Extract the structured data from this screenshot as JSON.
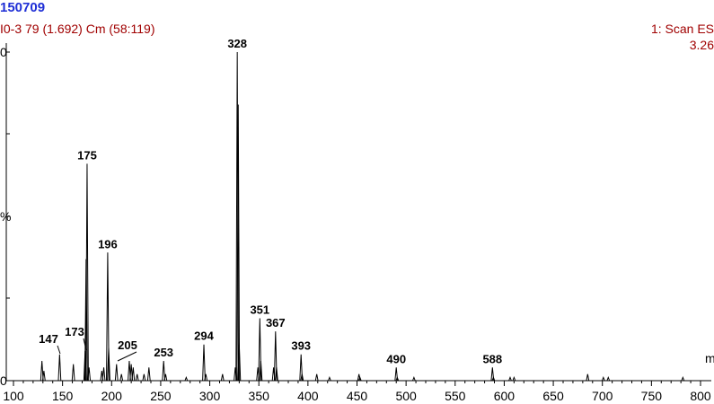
{
  "header": {
    "sample_id": "150709",
    "sample_info": "I0-3 79 (1.692) Cm (58:119)",
    "scan_info": "1: Scan ES",
    "intensity": "3.26"
  },
  "chart_data": {
    "type": "bar",
    "title": "",
    "xlabel": "m",
    "ylabel": "%",
    "y_tick_labels": [
      "0",
      "%"
    ],
    "xlim": [
      100,
      800
    ],
    "ylim": [
      0,
      100
    ],
    "x_ticks": [
      100,
      150,
      200,
      250,
      300,
      350,
      400,
      450,
      500,
      550,
      600,
      650,
      700,
      750,
      800
    ],
    "labeled_peaks": [
      {
        "mz": 147,
        "intensity": 8,
        "label": "147"
      },
      {
        "mz": 173,
        "intensity": 9,
        "label": "173"
      },
      {
        "mz": 175,
        "intensity": 66,
        "label": "175"
      },
      {
        "mz": 196,
        "intensity": 39,
        "label": "196"
      },
      {
        "mz": 205,
        "intensity": 5,
        "label": "205"
      },
      {
        "mz": 253,
        "intensity": 6,
        "label": "253"
      },
      {
        "mz": 294,
        "intensity": 11,
        "label": "294"
      },
      {
        "mz": 328,
        "intensity": 100,
        "label": "328"
      },
      {
        "mz": 351,
        "intensity": 19,
        "label": "351"
      },
      {
        "mz": 367,
        "intensity": 15,
        "label": "367"
      },
      {
        "mz": 393,
        "intensity": 8,
        "label": "393"
      },
      {
        "mz": 490,
        "intensity": 4,
        "label": "490"
      },
      {
        "mz": 588,
        "intensity": 4,
        "label": "588"
      }
    ],
    "minor_peaks": [
      {
        "mz": 129,
        "intensity": 6
      },
      {
        "mz": 131,
        "intensity": 3
      },
      {
        "mz": 161,
        "intensity": 5
      },
      {
        "mz": 174,
        "intensity": 37
      },
      {
        "mz": 177,
        "intensity": 4
      },
      {
        "mz": 190,
        "intensity": 3
      },
      {
        "mz": 192,
        "intensity": 4
      },
      {
        "mz": 197,
        "intensity": 10
      },
      {
        "mz": 210,
        "intensity": 2
      },
      {
        "mz": 218,
        "intensity": 6
      },
      {
        "mz": 220,
        "intensity": 5
      },
      {
        "mz": 222,
        "intensity": 4
      },
      {
        "mz": 226,
        "intensity": 2
      },
      {
        "mz": 233,
        "intensity": 2
      },
      {
        "mz": 238,
        "intensity": 4
      },
      {
        "mz": 255,
        "intensity": 2
      },
      {
        "mz": 276,
        "intensity": 1
      },
      {
        "mz": 296,
        "intensity": 2
      },
      {
        "mz": 313,
        "intensity": 2
      },
      {
        "mz": 326,
        "intensity": 4
      },
      {
        "mz": 329,
        "intensity": 84
      },
      {
        "mz": 330,
        "intensity": 11
      },
      {
        "mz": 349,
        "intensity": 4
      },
      {
        "mz": 352,
        "intensity": 6
      },
      {
        "mz": 365,
        "intensity": 4
      },
      {
        "mz": 368,
        "intensity": 4
      },
      {
        "mz": 394,
        "intensity": 2
      },
      {
        "mz": 409,
        "intensity": 2
      },
      {
        "mz": 422,
        "intensity": 1
      },
      {
        "mz": 452,
        "intensity": 2
      },
      {
        "mz": 453,
        "intensity": 1
      },
      {
        "mz": 491,
        "intensity": 1
      },
      {
        "mz": 508,
        "intensity": 1
      },
      {
        "mz": 589,
        "intensity": 1
      },
      {
        "mz": 606,
        "intensity": 1
      },
      {
        "mz": 610,
        "intensity": 1
      },
      {
        "mz": 685,
        "intensity": 2
      },
      {
        "mz": 701,
        "intensity": 1
      },
      {
        "mz": 706,
        "intensity": 1
      },
      {
        "mz": 782,
        "intensity": 1
      }
    ]
  }
}
